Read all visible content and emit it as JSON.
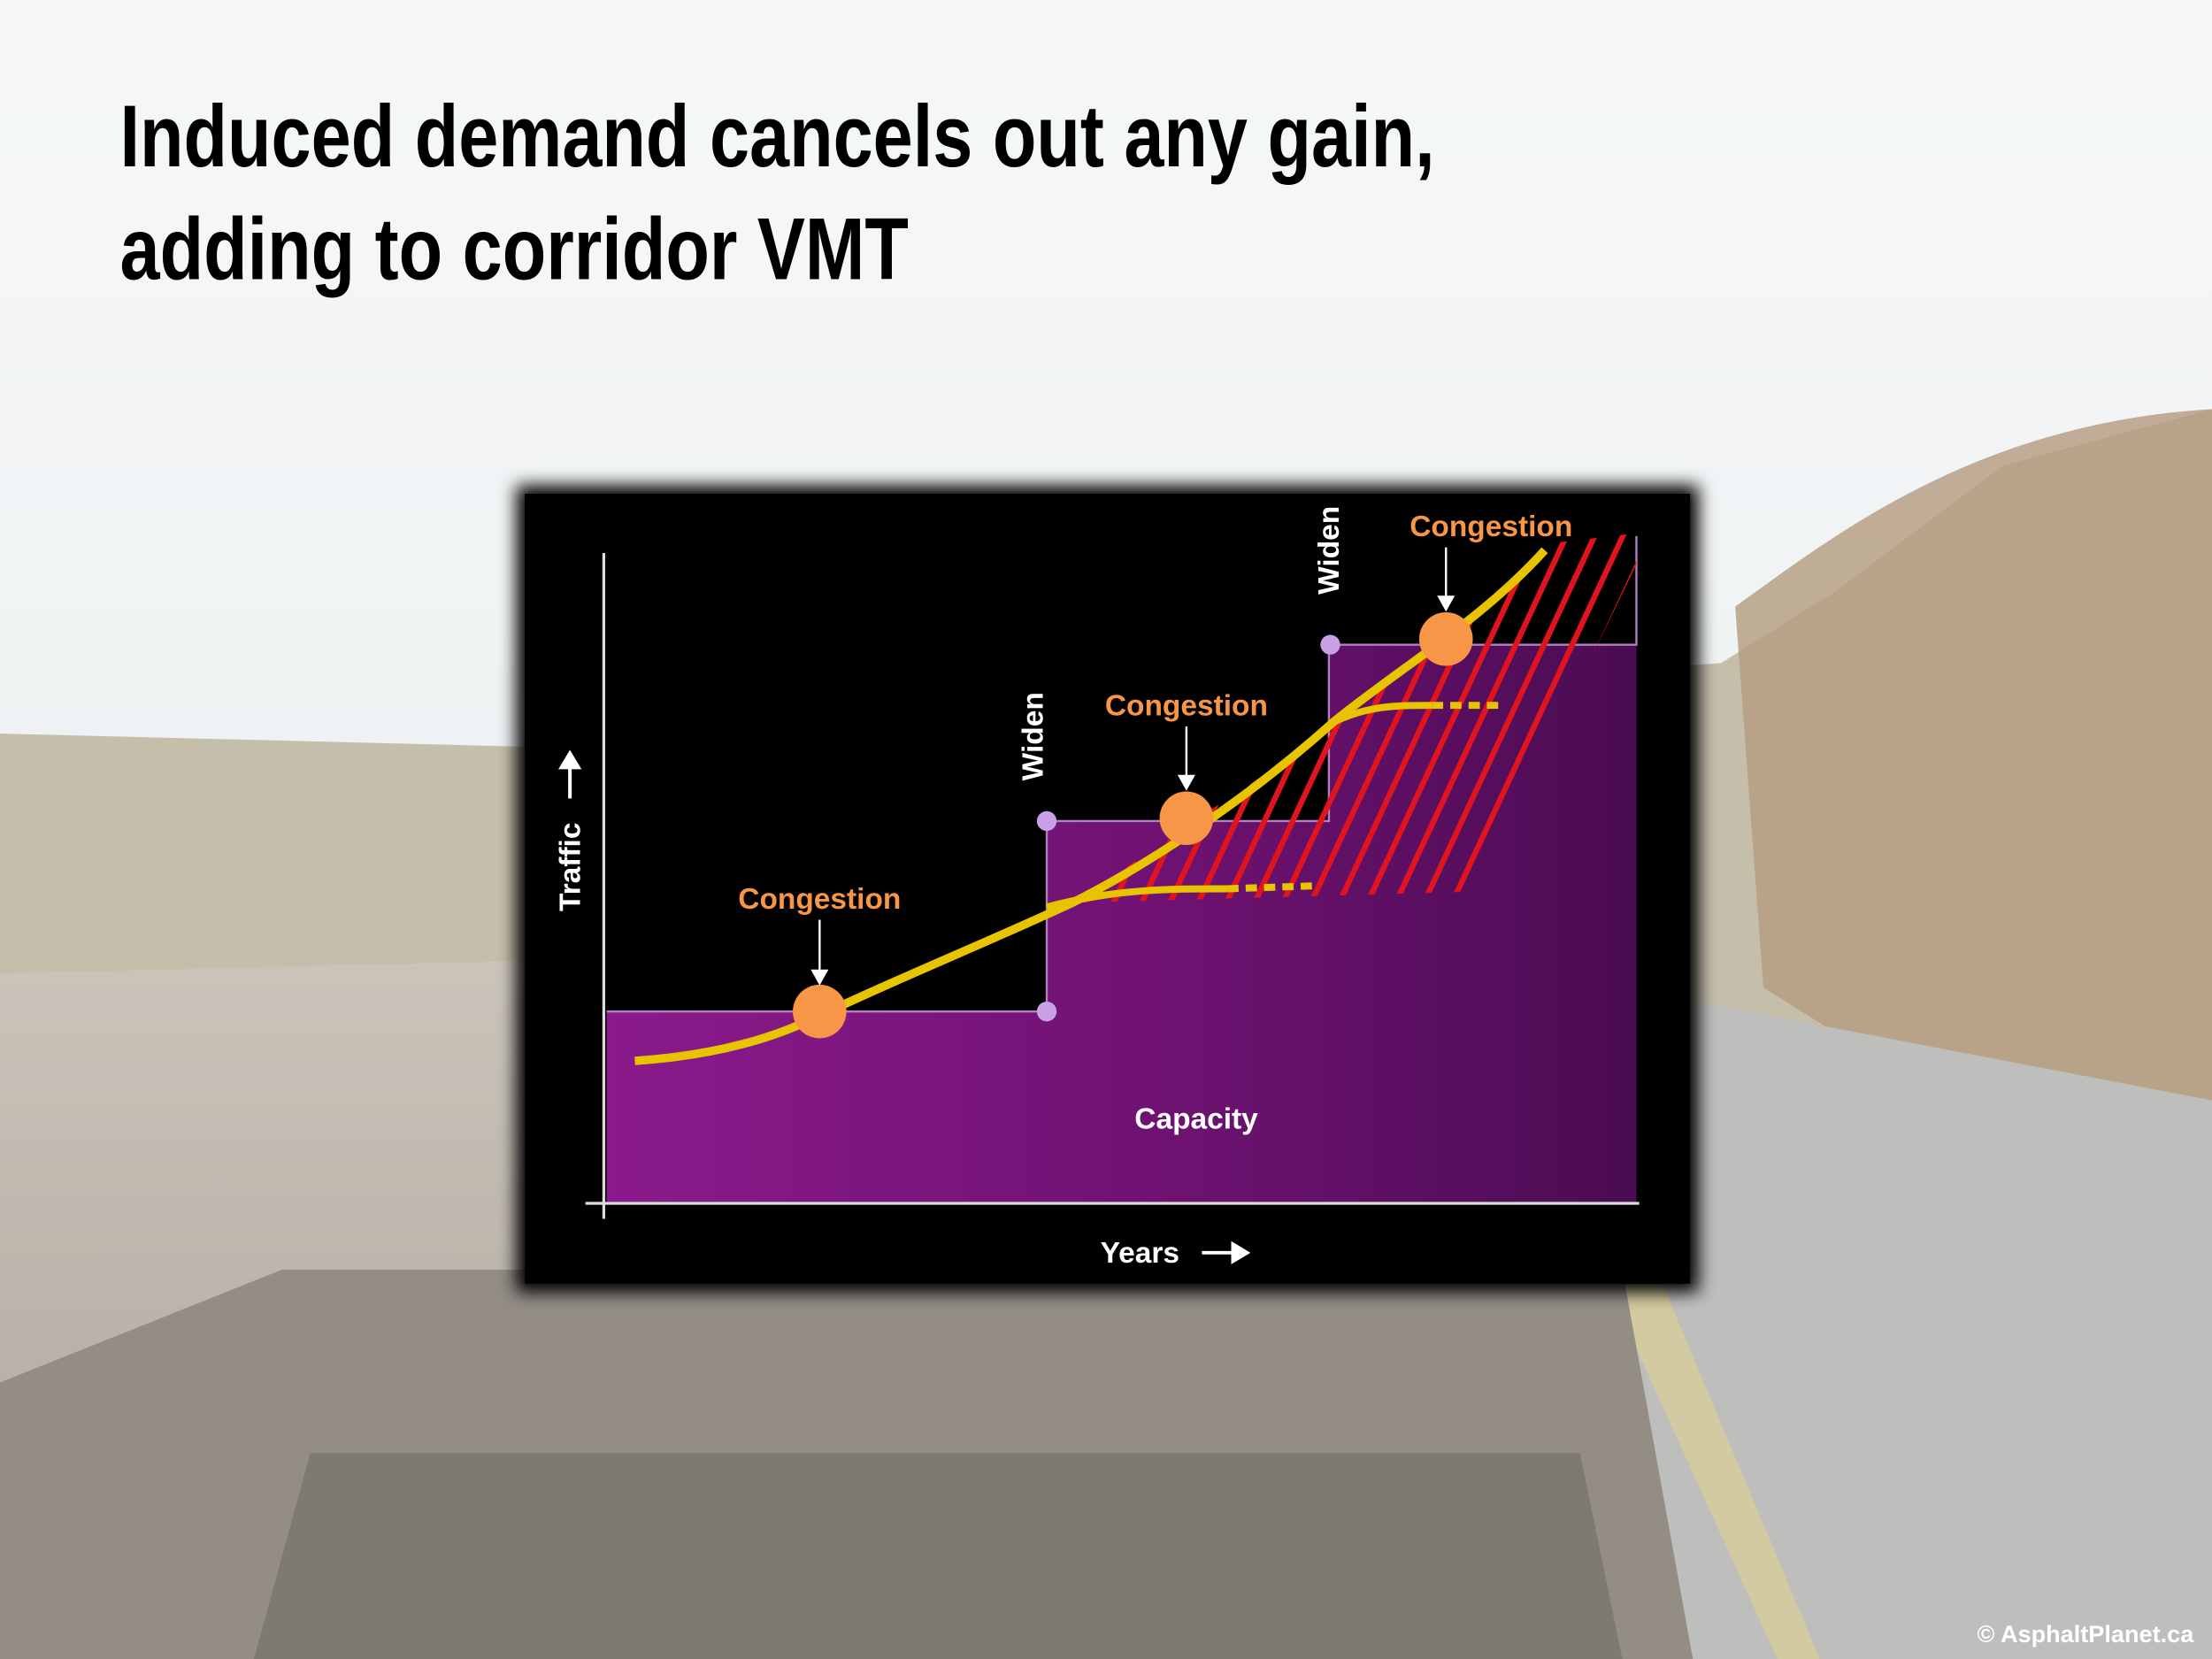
{
  "title": [
    "Induced demand cancels out any gain,",
    "adding to corridor VMT"
  ],
  "diagram": {
    "y_axis_label": "Traffic",
    "x_axis_label": "Years",
    "area_label": "Capacity",
    "congestion_labels": [
      "Congestion",
      "Congestion",
      "Congestion"
    ],
    "widen_labels": [
      "Widen",
      "Widen"
    ]
  },
  "credit": "© AsphaltPlanet.ca"
}
